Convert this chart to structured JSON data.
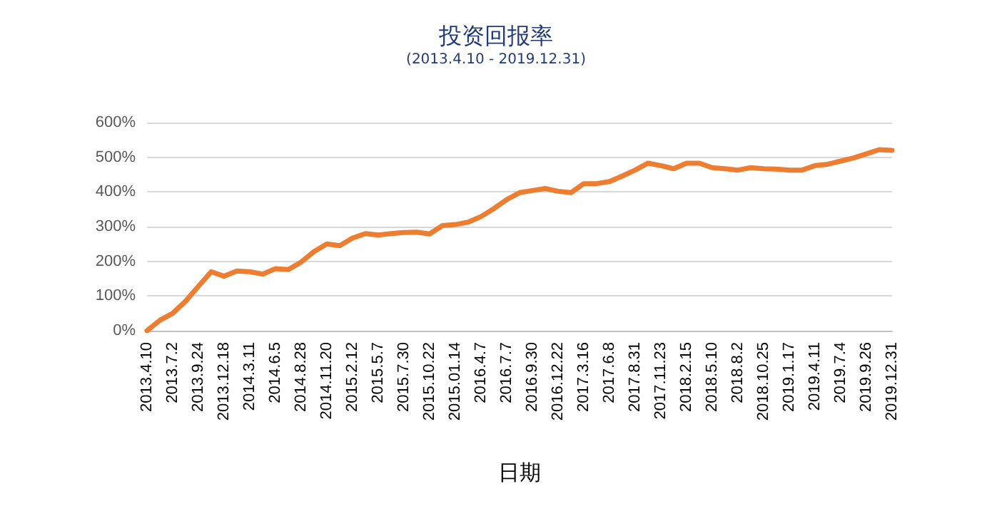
{
  "chart_data": {
    "type": "line",
    "title": "投资回报率",
    "subtitle": "(2013.4.10 - 2019.12.31)",
    "xlabel": "日期",
    "categories": [
      "2013.4.10",
      null,
      "2013.7.2",
      null,
      "2013.9.24",
      null,
      "2013.12.18",
      null,
      "2014.3.11",
      null,
      "2014.6.5",
      null,
      "2014.8.28",
      null,
      "2014.11.20",
      null,
      "2015.2.12",
      null,
      "2015.5.7",
      null,
      "2015.7.30",
      null,
      "2015.10.22",
      null,
      "2015.01.14",
      null,
      "2016.4.7",
      null,
      "2016.7.7",
      null,
      "2016.9.30",
      null,
      "2016.12.22",
      null,
      "2017.3.16",
      null,
      "2017.6.8",
      null,
      "2017.8.31",
      null,
      "2017.11.23",
      null,
      "2018.2.15",
      null,
      "2018.5.10",
      null,
      "2018.8.2",
      null,
      "2018.10.25",
      null,
      "2019.1.17",
      null,
      "2019.4.11",
      null,
      "2019.7.4",
      null,
      "2019.9.26",
      null,
      "2019.12.31"
    ],
    "series": [
      {
        "color": "#ed7d31",
        "values": [
          0,
          30,
          50,
          85,
          128,
          170,
          157,
          172,
          170,
          163,
          179,
          176,
          198,
          228,
          250,
          245,
          267,
          280,
          276,
          280,
          283,
          284,
          279,
          303,
          306,
          313,
          329,
          352,
          378,
          398,
          404,
          410,
          402,
          398,
          424,
          424,
          430,
          446,
          463,
          483,
          476,
          467,
          483,
          483,
          470,
          467,
          463,
          470,
          467,
          466,
          463,
          463,
          476,
          480,
          489,
          498,
          510,
          522,
          520
        ]
      }
    ],
    "ylim": [
      0,
      600
    ],
    "yticks": [
      {
        "value": 0,
        "label": "0%"
      },
      {
        "value": 100,
        "label": "100%"
      },
      {
        "value": 200,
        "label": "200%"
      },
      {
        "value": 300,
        "label": "300%"
      },
      {
        "value": 400,
        "label": "400%"
      },
      {
        "value": 500,
        "label": "500%"
      },
      {
        "value": 600,
        "label": "600%"
      }
    ],
    "grid": "y",
    "marker": "none",
    "line_style": "solid"
  }
}
